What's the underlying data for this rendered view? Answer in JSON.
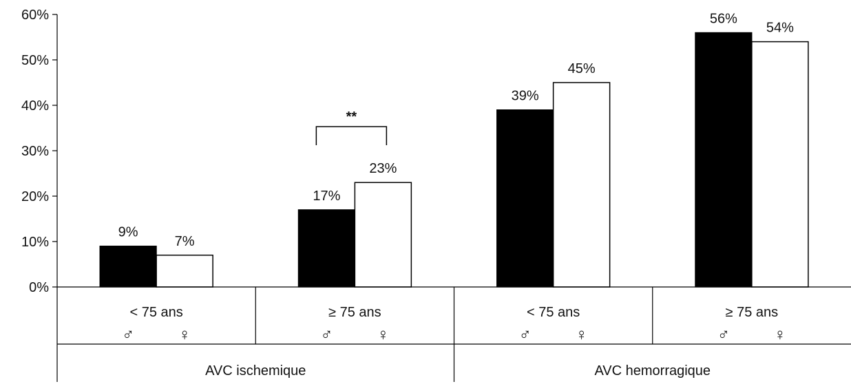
{
  "chart_data": {
    "type": "bar",
    "ylim": [
      0,
      60
    ],
    "y_ticks": [
      0,
      10,
      20,
      30,
      40,
      50,
      60
    ],
    "y_tick_suffix": "%",
    "categories": [
      {
        "age": "< 75 ans",
        "male_symbol": "♂",
        "female_symbol": "♀"
      },
      {
        "age": "≥ 75 ans",
        "male_symbol": "♂",
        "female_symbol": "♀"
      },
      {
        "age": "< 75 ans",
        "male_symbol": "♂",
        "female_symbol": "♀"
      },
      {
        "age": "≥ 75 ans",
        "male_symbol": "♂",
        "female_symbol": "♀"
      }
    ],
    "groups": [
      "AVC ischemique",
      "AVC hemorragique"
    ],
    "series": [
      {
        "symbol": "♂",
        "color": "#000000",
        "values": [
          9,
          17,
          39,
          56
        ]
      },
      {
        "symbol": "♀",
        "color": "#ffffff",
        "values": [
          7,
          23,
          45,
          54
        ]
      }
    ],
    "data_labels": {
      "male": [
        "9%",
        "17%",
        "39%",
        "56%"
      ],
      "female": [
        "7%",
        "23%",
        "45%",
        "54%"
      ]
    },
    "annotation": {
      "text": "**",
      "category_index": 1
    },
    "grid": false,
    "legend": "none"
  }
}
